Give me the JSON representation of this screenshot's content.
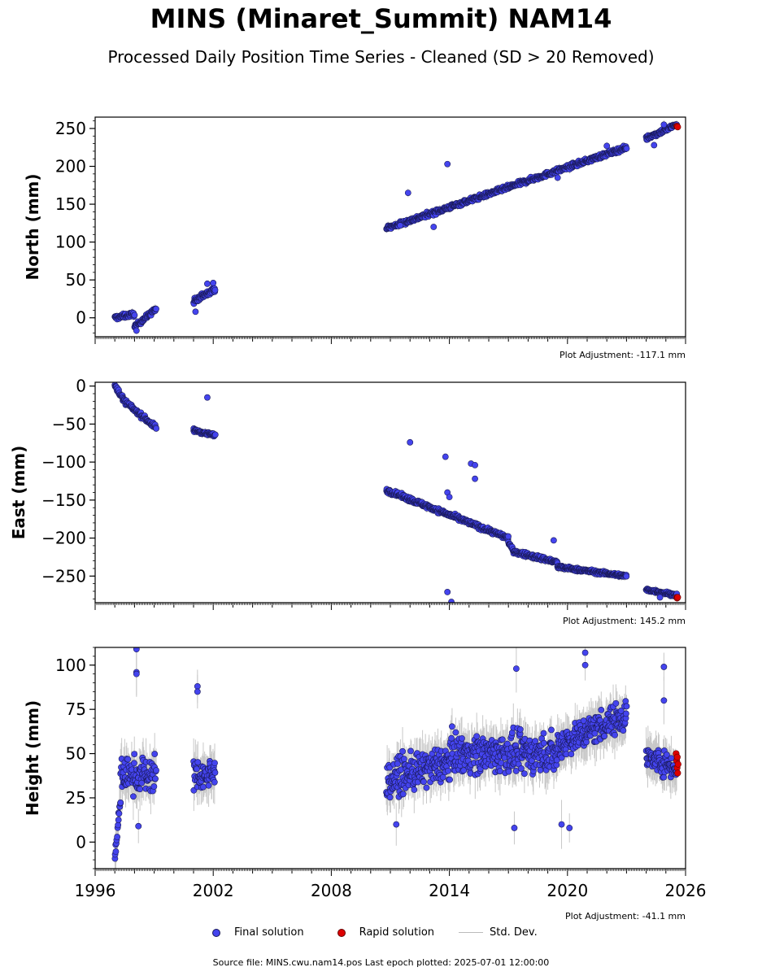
{
  "title": "MINS (Minaret_Summit) NAM14",
  "subtitle": "Processed Daily Position Time Series - Cleaned (SD > 20 Removed)",
  "legend": {
    "final": "Final solution",
    "rapid": "Rapid solution",
    "std": "Std. Dev."
  },
  "source": "Source file: MINS.cwu.nam14.pos  Last epoch plotted: 2025-07-01 12:00:00",
  "colors": {
    "final": "#4444ee",
    "final_edge": "#1a1a5a",
    "rapid": "#dd0000",
    "std": "#bbbbbb"
  },
  "chart_data": [
    {
      "type": "scatter",
      "ylabel": "North (mm)",
      "adjustment": "Plot Adjustment: -117.1 mm",
      "xlim": [
        1996,
        2026
      ],
      "ylim": [
        -25,
        265
      ],
      "yticks": [
        0,
        50,
        100,
        150,
        200,
        250
      ],
      "ytick_labels": [
        "0",
        "50",
        "100",
        "150",
        "200",
        "250"
      ],
      "segments": [
        {
          "x0": 1997.0,
          "x1": 1998.0,
          "y0": 0,
          "y1": 5,
          "spread": 4
        },
        {
          "x0": 1998.0,
          "x1": 1999.1,
          "y0": -12,
          "y1": 12,
          "spread": 4
        },
        {
          "x0": 2001.0,
          "x1": 2001.5,
          "y0": 20,
          "y1": 30,
          "spread": 6
        },
        {
          "x0": 2001.5,
          "x1": 2002.1,
          "y0": 30,
          "y1": 38,
          "spread": 4
        },
        {
          "x0": 2010.8,
          "x1": 2023.0,
          "y0": 118,
          "y1": 225,
          "spread": 4
        },
        {
          "x0": 2024.0,
          "x1": 2025.55,
          "y0": 237,
          "y1": 255,
          "spread": 4
        }
      ],
      "outliers": [
        {
          "x": 2013.9,
          "y": 203
        },
        {
          "x": 2011.9,
          "y": 165
        },
        {
          "x": 2011.5,
          "y": 122
        },
        {
          "x": 2013.2,
          "y": 120
        },
        {
          "x": 2001.1,
          "y": 8
        },
        {
          "x": 2001.7,
          "y": 45
        },
        {
          "x": 2002.0,
          "y": 46
        },
        {
          "x": 2024.4,
          "y": 228
        },
        {
          "x": 2022.0,
          "y": 227
        },
        {
          "x": 2024.9,
          "y": 255
        },
        {
          "x": 1998.1,
          "y": -17
        },
        {
          "x": 2019.5,
          "y": 185
        }
      ],
      "rapid": [
        {
          "x": 2025.55,
          "y": 253
        },
        {
          "x": 2025.57,
          "y": 253
        },
        {
          "x": 2025.6,
          "y": 252
        }
      ]
    },
    {
      "type": "scatter",
      "ylabel": "East (mm)",
      "adjustment": "Plot Adjustment: 145.2 mm",
      "xlim": [
        1996,
        2026
      ],
      "ylim": [
        -285,
        5
      ],
      "yticks": [
        0,
        -50,
        -100,
        -150,
        -200,
        -250
      ],
      "ytick_labels": [
        "0",
        "−50",
        "−100",
        "−150",
        "−200",
        "−250"
      ],
      "segments": [
        {
          "x0": 1997.0,
          "x1": 1997.4,
          "y0": 0,
          "y1": -15,
          "spread": 4
        },
        {
          "x0": 1997.4,
          "x1": 1999.1,
          "y0": -18,
          "y1": -55,
          "spread": 4
        },
        {
          "x0": 2001.0,
          "x1": 2002.1,
          "y0": -58,
          "y1": -65,
          "spread": 3
        },
        {
          "x0": 2010.8,
          "x1": 2017.0,
          "y0": -137,
          "y1": -200,
          "spread": 4
        },
        {
          "x0": 2017.0,
          "x1": 2017.3,
          "y0": -205,
          "y1": -220,
          "spread": 4
        },
        {
          "x0": 2017.3,
          "x1": 2019.5,
          "y0": -218,
          "y1": -232,
          "spread": 4
        },
        {
          "x0": 2019.5,
          "x1": 2023.0,
          "y0": -238,
          "y1": -250,
          "spread": 3
        },
        {
          "x0": 2024.0,
          "x1": 2025.55,
          "y0": -268,
          "y1": -275,
          "spread": 3
        }
      ],
      "outliers": [
        {
          "x": 2001.7,
          "y": -15
        },
        {
          "x": 2012.0,
          "y": -74
        },
        {
          "x": 2013.8,
          "y": -93
        },
        {
          "x": 2015.1,
          "y": -102
        },
        {
          "x": 2015.3,
          "y": -104
        },
        {
          "x": 2015.3,
          "y": -122
        },
        {
          "x": 2013.9,
          "y": -140
        },
        {
          "x": 2014.0,
          "y": -146
        },
        {
          "x": 2013.9,
          "y": -271
        },
        {
          "x": 2014.1,
          "y": -284
        },
        {
          "x": 2019.3,
          "y": -203
        },
        {
          "x": 2024.7,
          "y": -278
        }
      ],
      "rapid": [
        {
          "x": 2025.55,
          "y": -278
        },
        {
          "x": 2025.57,
          "y": -279
        },
        {
          "x": 2025.6,
          "y": -278
        }
      ]
    },
    {
      "type": "scatter",
      "ylabel": "Height (mm)",
      "adjustment": "Plot Adjustment: -41.1 mm",
      "xlim": [
        1996,
        2026
      ],
      "ylim": [
        -15,
        110
      ],
      "yticks": [
        0,
        25,
        50,
        75,
        100
      ],
      "ytick_labels": [
        "0",
        "25",
        "50",
        "75",
        "100"
      ],
      "xticks": [
        1996,
        2002,
        2008,
        2014,
        2020,
        2026
      ],
      "xtick_labels": [
        "1996",
        "2002",
        "2008",
        "2014",
        "2020",
        "2026"
      ],
      "segments": [
        {
          "x0": 1997.0,
          "x1": 1997.3,
          "y0": -10,
          "y1": 25,
          "spread": 5
        },
        {
          "x0": 1997.3,
          "x1": 1999.1,
          "y0": 38,
          "y1": 38,
          "spread": 14
        },
        {
          "x0": 2001.0,
          "x1": 2002.1,
          "y0": 38,
          "y1": 38,
          "spread": 12
        },
        {
          "x0": 2010.8,
          "x1": 2014.0,
          "y0": 35,
          "y1": 45,
          "spread": 14
        },
        {
          "x0": 2014.0,
          "x1": 2019.5,
          "y0": 50,
          "y1": 50,
          "spread": 15
        },
        {
          "x0": 2019.5,
          "x1": 2023.0,
          "y0": 55,
          "y1": 72,
          "spread": 12
        },
        {
          "x0": 2024.0,
          "x1": 2025.55,
          "y0": 48,
          "y1": 42,
          "spread": 9
        }
      ],
      "outliers": [
        {
          "x": 1998.1,
          "y": 109
        },
        {
          "x": 1998.1,
          "y": 96
        },
        {
          "x": 1998.1,
          "y": 95
        },
        {
          "x": 2001.2,
          "y": 88
        },
        {
          "x": 2001.2,
          "y": 85
        },
        {
          "x": 2020.9,
          "y": 107
        },
        {
          "x": 2020.9,
          "y": 100
        },
        {
          "x": 2017.4,
          "y": 98
        },
        {
          "x": 2024.9,
          "y": 99
        },
        {
          "x": 2024.9,
          "y": 80
        },
        {
          "x": 2020.1,
          "y": 8
        },
        {
          "x": 2017.3,
          "y": 8
        },
        {
          "x": 1998.2,
          "y": 9
        },
        {
          "x": 2011.3,
          "y": 10
        },
        {
          "x": 2019.7,
          "y": 10
        }
      ],
      "rapid": [
        {
          "x": 2025.52,
          "y": 50
        },
        {
          "x": 2025.55,
          "y": 46
        },
        {
          "x": 2025.57,
          "y": 42
        },
        {
          "x": 2025.6,
          "y": 39
        },
        {
          "x": 2025.62,
          "y": 44
        },
        {
          "x": 2025.58,
          "y": 48
        }
      ]
    }
  ]
}
